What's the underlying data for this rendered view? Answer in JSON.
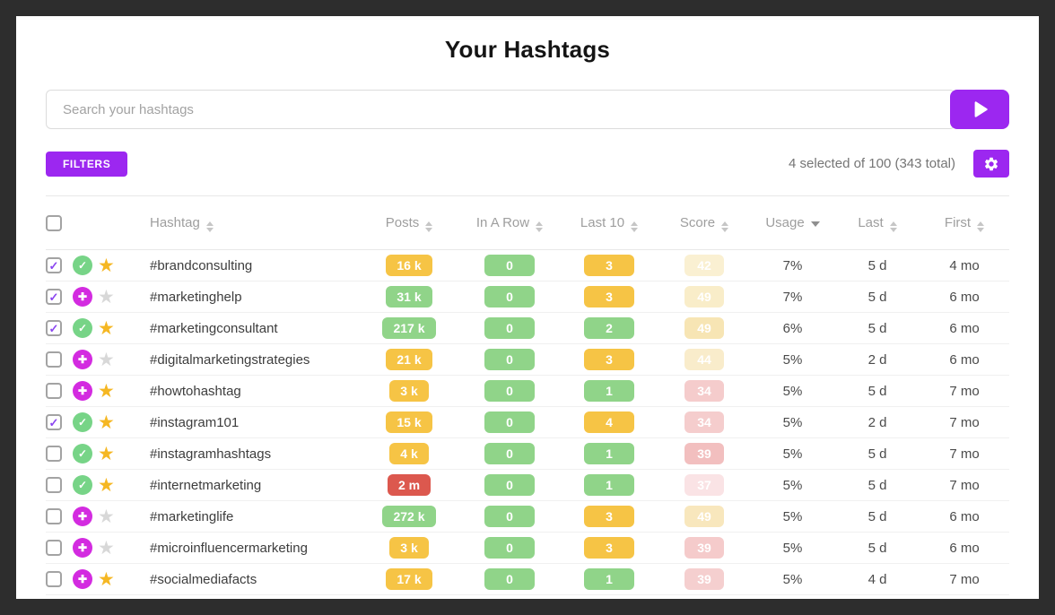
{
  "page": {
    "title": "Your Hashtags"
  },
  "search": {
    "placeholder": "Search your hashtags",
    "value": "",
    "submit_icon": "play-icon"
  },
  "toolbar": {
    "filters_label": "FILTERS",
    "selection_summary": "4 selected of 100 (343 total)",
    "settings_icon": "gear-icon"
  },
  "colors": {
    "accent": "#9c27f0",
    "checkbox_check": "#8b46f0",
    "badge_yellow": "#f6c445",
    "badge_green": "#90d489",
    "badge_red": "#dc584e",
    "status_approved_green": "#77d487",
    "status_added_magenta": "#d32be0",
    "star_gold": "#f5b723",
    "star_inactive": "#d8d8d8",
    "badge_text": "#ffffff"
  },
  "table": {
    "columns": [
      {
        "key": "hashtag",
        "label": "Hashtag",
        "sort": "both"
      },
      {
        "key": "posts",
        "label": "Posts",
        "sort": "both"
      },
      {
        "key": "inarow",
        "label": "In A Row",
        "sort": "both"
      },
      {
        "key": "last10",
        "label": "Last 10",
        "sort": "both"
      },
      {
        "key": "score",
        "label": "Score",
        "sort": "both"
      },
      {
        "key": "usage",
        "label": "Usage",
        "sort": "desc"
      },
      {
        "key": "last",
        "label": "Last",
        "sort": "both"
      },
      {
        "key": "first",
        "label": "First",
        "sort": "both"
      }
    ],
    "rows": [
      {
        "hashtag": "#brandconsulting",
        "checked": true,
        "status": "approved",
        "starred": true,
        "posts": {
          "text": "16 k",
          "color": "yellow"
        },
        "in_a_row": {
          "text": "0",
          "color": "green"
        },
        "last10": {
          "text": "3",
          "color": "yellow"
        },
        "score": {
          "text": "42",
          "bg": "#faf0d2"
        },
        "usage": "7%",
        "last": "5 d",
        "first": "4 mo"
      },
      {
        "hashtag": "#marketinghelp",
        "checked": true,
        "status": "added",
        "starred": false,
        "posts": {
          "text": "31 k",
          "color": "green"
        },
        "in_a_row": {
          "text": "0",
          "color": "green"
        },
        "last10": {
          "text": "3",
          "color": "yellow"
        },
        "score": {
          "text": "49",
          "bg": "#f9edc9"
        },
        "usage": "7%",
        "last": "5 d",
        "first": "6 mo"
      },
      {
        "hashtag": "#marketingconsultant",
        "checked": true,
        "status": "approved",
        "starred": true,
        "posts": {
          "text": "217 k",
          "color": "green"
        },
        "in_a_row": {
          "text": "0",
          "color": "green"
        },
        "last10": {
          "text": "2",
          "color": "green"
        },
        "score": {
          "text": "49",
          "bg": "#f7e5b4"
        },
        "usage": "6%",
        "last": "5 d",
        "first": "6 mo"
      },
      {
        "hashtag": "#digitalmarketingstrategies",
        "checked": false,
        "status": "added",
        "starred": false,
        "posts": {
          "text": "21 k",
          "color": "yellow"
        },
        "in_a_row": {
          "text": "0",
          "color": "green"
        },
        "last10": {
          "text": "3",
          "color": "yellow"
        },
        "score": {
          "text": "44",
          "bg": "#f9eccb"
        },
        "usage": "5%",
        "last": "2 d",
        "first": "6 mo"
      },
      {
        "hashtag": "#howtohashtag",
        "checked": false,
        "status": "added",
        "starred": true,
        "posts": {
          "text": "3 k",
          "color": "yellow"
        },
        "in_a_row": {
          "text": "0",
          "color": "green"
        },
        "last10": {
          "text": "1",
          "color": "green"
        },
        "score": {
          "text": "34",
          "bg": "#f5cccc"
        },
        "usage": "5%",
        "last": "5 d",
        "first": "7 mo"
      },
      {
        "hashtag": "#instagram101",
        "checked": true,
        "status": "approved",
        "starred": true,
        "posts": {
          "text": "15 k",
          "color": "yellow"
        },
        "in_a_row": {
          "text": "0",
          "color": "green"
        },
        "last10": {
          "text": "4",
          "color": "yellow"
        },
        "score": {
          "text": "34",
          "bg": "#f5cdcd"
        },
        "usage": "5%",
        "last": "2 d",
        "first": "7 mo"
      },
      {
        "hashtag": "#instagramhashtags",
        "checked": false,
        "status": "approved",
        "starred": true,
        "posts": {
          "text": "4 k",
          "color": "yellow"
        },
        "in_a_row": {
          "text": "0",
          "color": "green"
        },
        "last10": {
          "text": "1",
          "color": "green"
        },
        "score": {
          "text": "39",
          "bg": "#f2bfbf"
        },
        "usage": "5%",
        "last": "5 d",
        "first": "7 mo"
      },
      {
        "hashtag": "#internetmarketing",
        "checked": false,
        "status": "approved",
        "starred": true,
        "posts": {
          "text": "2 m",
          "color": "red"
        },
        "in_a_row": {
          "text": "0",
          "color": "green"
        },
        "last10": {
          "text": "1",
          "color": "green"
        },
        "score": {
          "text": "37",
          "bg": "#fae3e5"
        },
        "usage": "5%",
        "last": "5 d",
        "first": "7 mo"
      },
      {
        "hashtag": "#marketinglife",
        "checked": false,
        "status": "added",
        "starred": false,
        "posts": {
          "text": "272 k",
          "color": "green"
        },
        "in_a_row": {
          "text": "0",
          "color": "green"
        },
        "last10": {
          "text": "3",
          "color": "yellow"
        },
        "score": {
          "text": "49",
          "bg": "#f8e7bd"
        },
        "usage": "5%",
        "last": "5 d",
        "first": "6 mo"
      },
      {
        "hashtag": "#microinfluencermarketing",
        "checked": false,
        "status": "added",
        "starred": false,
        "posts": {
          "text": "3 k",
          "color": "yellow"
        },
        "in_a_row": {
          "text": "0",
          "color": "green"
        },
        "last10": {
          "text": "3",
          "color": "yellow"
        },
        "score": {
          "text": "39",
          "bg": "#f5cbcb"
        },
        "usage": "5%",
        "last": "5 d",
        "first": "6 mo"
      },
      {
        "hashtag": "#socialmediafacts",
        "checked": false,
        "status": "added",
        "starred": true,
        "posts": {
          "text": "17 k",
          "color": "yellow"
        },
        "in_a_row": {
          "text": "0",
          "color": "green"
        },
        "last10": {
          "text": "1",
          "color": "green"
        },
        "score": {
          "text": "39",
          "bg": "#f5cfcf"
        },
        "usage": "5%",
        "last": "4 d",
        "first": "7 mo"
      }
    ]
  }
}
